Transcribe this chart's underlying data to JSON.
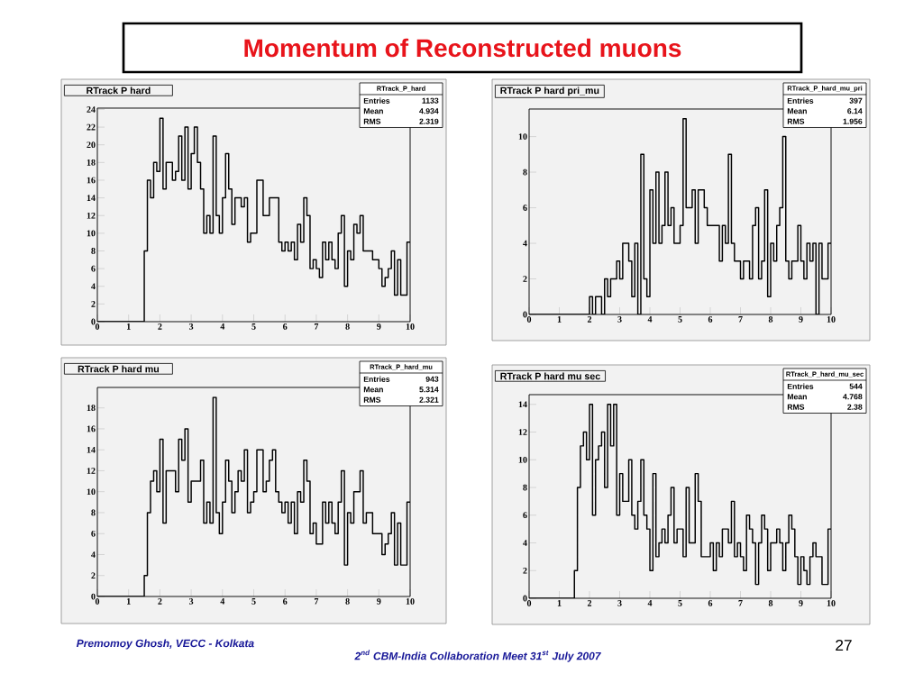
{
  "chart_data": [
    {
      "type": "histogram",
      "title": "RTrack P hard",
      "color": "#000000",
      "bins": [
        0,
        0.1,
        0.2,
        0.3,
        0.4,
        0.5,
        0.6,
        0.7,
        0.8,
        0.9,
        1,
        1.1,
        1.2,
        1.3,
        1.4,
        1.5,
        1.6,
        1.7,
        1.8,
        1.9,
        2,
        2.1,
        2.2,
        2.3,
        2.4,
        2.5,
        2.6,
        2.7,
        2.8,
        2.9,
        3,
        3.1,
        3.2,
        3.3,
        3.4,
        3.5,
        3.6,
        3.7,
        3.8,
        3.9,
        4,
        4.1,
        4.2,
        4.3,
        4.4,
        4.5,
        4.6,
        4.7,
        4.8,
        4.9,
        5,
        5.1,
        5.2,
        5.3,
        5.4,
        5.5,
        5.6,
        5.7,
        5.8,
        5.9,
        6,
        6.1,
        6.2,
        6.3,
        6.4,
        6.5,
        6.6,
        6.7,
        6.8,
        6.9,
        7,
        7.1,
        7.2,
        7.3,
        7.4,
        7.5,
        7.6,
        7.7,
        7.8,
        7.9,
        8,
        8.1,
        8.2,
        8.3,
        8.4,
        8.5,
        8.6,
        8.7,
        8.8,
        8.9,
        9,
        9.1,
        9.2,
        9.3,
        9.4,
        9.5,
        9.6,
        9.7,
        9.8,
        9.9,
        10
      ],
      "values": [
        0,
        0,
        0,
        0,
        0,
        0,
        0,
        0,
        0,
        0,
        0,
        0,
        0,
        0,
        0,
        8,
        16,
        14,
        18,
        17,
        23,
        15,
        18,
        18,
        16,
        17,
        21,
        16,
        22,
        15,
        19,
        22,
        18,
        15,
        10,
        12,
        10,
        21,
        12,
        10,
        14,
        19,
        15,
        11,
        14,
        14,
        13,
        14,
        9,
        10,
        10,
        16,
        16,
        12,
        12,
        14,
        14,
        14,
        9,
        8,
        9,
        8,
        9,
        7,
        11,
        9,
        14,
        12,
        6,
        7,
        6,
        5,
        9,
        7,
        9,
        7,
        6,
        10,
        12,
        4,
        8,
        7,
        11,
        10,
        12,
        8,
        8,
        8,
        7,
        7,
        6,
        4,
        5,
        6,
        8,
        3,
        7,
        3,
        3,
        9
      ],
      "xlim": [
        0,
        10
      ],
      "ylim": [
        0,
        24.15
      ],
      "xticks": [
        0,
        1,
        2,
        3,
        4,
        5,
        6,
        7,
        8,
        9,
        10
      ],
      "yticks": [
        0,
        2,
        4,
        6,
        8,
        10,
        12,
        14,
        16,
        18,
        20,
        22,
        24
      ],
      "annotations": [
        "RTrack_P_hard",
        "Entries",
        "1133",
        "Mean",
        "4.934",
        "RMS",
        "2.319",
        "Momentum of Reconstructed muons"
      ]
    },
    {
      "type": "histogram",
      "title": "RTrack P hard pri_mu",
      "color": "#000000",
      "bins": [
        0,
        0.1,
        0.2,
        0.3,
        0.4,
        0.5,
        0.6,
        0.7,
        0.8,
        0.9,
        1,
        1.1,
        1.2,
        1.3,
        1.4,
        1.5,
        1.6,
        1.7,
        1.8,
        1.9,
        2,
        2.1,
        2.2,
        2.3,
        2.4,
        2.5,
        2.6,
        2.7,
        2.8,
        2.9,
        3,
        3.1,
        3.2,
        3.3,
        3.4,
        3.5,
        3.6,
        3.7,
        3.8,
        3.9,
        4,
        4.1,
        4.2,
        4.3,
        4.4,
        4.5,
        4.6,
        4.7,
        4.8,
        4.9,
        5,
        5.1,
        5.2,
        5.3,
        5.4,
        5.5,
        5.6,
        5.7,
        5.8,
        5.9,
        6,
        6.1,
        6.2,
        6.3,
        6.4,
        6.5,
        6.6,
        6.7,
        6.8,
        6.9,
        7,
        7.1,
        7.2,
        7.3,
        7.4,
        7.5,
        7.6,
        7.7,
        7.8,
        7.9,
        8,
        8.1,
        8.2,
        8.3,
        8.4,
        8.5,
        8.6,
        8.7,
        8.8,
        8.9,
        9,
        9.1,
        9.2,
        9.3,
        9.4,
        9.5,
        9.6,
        9.7,
        9.8,
        9.9,
        10
      ],
      "values": [
        0,
        0,
        0,
        0,
        0,
        0,
        0,
        0,
        0,
        0,
        0,
        0,
        0,
        0,
        0,
        0,
        0,
        0,
        0,
        0,
        1,
        0,
        1,
        1,
        0,
        2,
        1,
        2,
        2,
        3,
        2,
        4,
        4,
        3,
        1,
        4,
        0,
        9,
        2,
        1,
        7,
        4,
        8,
        4,
        5,
        8,
        5,
        6,
        4,
        4,
        5,
        11,
        6,
        6,
        7,
        4,
        7,
        7,
        6,
        5,
        5,
        5,
        5,
        3,
        5,
        4,
        9,
        4,
        3,
        3,
        2,
        3,
        3,
        2,
        5,
        6,
        2,
        3,
        7,
        1,
        4,
        3,
        5,
        6,
        10,
        3,
        2,
        3,
        3,
        5,
        3,
        2,
        4,
        3,
        4,
        0,
        4,
        2,
        2,
        4
      ],
      "xlim": [
        0,
        10
      ],
      "ylim": [
        0,
        11.55
      ],
      "xticks": [
        0,
        1,
        2,
        3,
        4,
        5,
        6,
        7,
        8,
        9,
        10
      ],
      "yticks": [
        0,
        2,
        4,
        6,
        8,
        10
      ],
      "annotations": [
        "RTrack_P_hard_mu_pri",
        "Entries",
        "397",
        "Mean",
        "6.14",
        "RMS",
        "1.956"
      ]
    },
    {
      "type": "histogram",
      "title": "RTrack P hard mu",
      "color": "#000000",
      "bins": [
        0,
        0.1,
        0.2,
        0.3,
        0.4,
        0.5,
        0.6,
        0.7,
        0.8,
        0.9,
        1,
        1.1,
        1.2,
        1.3,
        1.4,
        1.5,
        1.6,
        1.7,
        1.8,
        1.9,
        2,
        2.1,
        2.2,
        2.3,
        2.4,
        2.5,
        2.6,
        2.7,
        2.8,
        2.9,
        3,
        3.1,
        3.2,
        3.3,
        3.4,
        3.5,
        3.6,
        3.7,
        3.8,
        3.9,
        4,
        4.1,
        4.2,
        4.3,
        4.4,
        4.5,
        4.6,
        4.7,
        4.8,
        4.9,
        5,
        5.1,
        5.2,
        5.3,
        5.4,
        5.5,
        5.6,
        5.7,
        5.8,
        5.9,
        6,
        6.1,
        6.2,
        6.3,
        6.4,
        6.5,
        6.6,
        6.7,
        6.8,
        6.9,
        7,
        7.1,
        7.2,
        7.3,
        7.4,
        7.5,
        7.6,
        7.7,
        7.8,
        7.9,
        8,
        8.1,
        8.2,
        8.3,
        8.4,
        8.5,
        8.6,
        8.7,
        8.8,
        8.9,
        9,
        9.1,
        9.2,
        9.3,
        9.4,
        9.5,
        9.6,
        9.7,
        9.8,
        9.9,
        10
      ],
      "values": [
        0,
        0,
        0,
        0,
        0,
        0,
        0,
        0,
        0,
        0,
        0,
        0,
        0,
        0,
        0,
        2,
        8,
        11,
        12,
        10,
        15,
        7,
        12,
        12,
        12,
        10,
        15,
        13,
        16,
        9,
        11,
        11,
        11,
        13,
        7,
        9,
        7,
        19,
        8,
        6,
        9,
        13,
        11,
        8,
        10,
        12,
        11,
        14,
        8,
        9,
        10,
        14,
        14,
        10,
        11,
        13,
        14,
        10,
        9,
        8,
        9,
        7,
        9,
        6,
        10,
        9,
        13,
        11,
        6,
        7,
        5,
        5,
        9,
        7,
        9,
        7,
        6,
        9,
        12,
        3,
        8,
        7,
        10,
        10,
        12,
        7,
        8,
        8,
        6,
        6,
        6,
        4,
        5,
        6,
        8,
        3,
        7,
        3,
        3,
        9
      ],
      "xlim": [
        0,
        10
      ],
      "ylim": [
        0,
        19.95
      ],
      "xticks": [
        0,
        1,
        2,
        3,
        4,
        5,
        6,
        7,
        8,
        9,
        10
      ],
      "yticks": [
        0,
        2,
        4,
        6,
        8,
        10,
        12,
        14,
        16,
        18
      ],
      "annotations": [
        "RTrack_P_hard_mu",
        "Entries",
        "943",
        "Mean",
        "5.314",
        "RMS",
        "2.321"
      ]
    },
    {
      "type": "histogram",
      "title": "RTrack P hard mu sec",
      "color": "#000000",
      "bins": [
        0,
        0.1,
        0.2,
        0.3,
        0.4,
        0.5,
        0.6,
        0.7,
        0.8,
        0.9,
        1,
        1.1,
        1.2,
        1.3,
        1.4,
        1.5,
        1.6,
        1.7,
        1.8,
        1.9,
        2,
        2.1,
        2.2,
        2.3,
        2.4,
        2.5,
        2.6,
        2.7,
        2.8,
        2.9,
        3,
        3.1,
        3.2,
        3.3,
        3.4,
        3.5,
        3.6,
        3.7,
        3.8,
        3.9,
        4,
        4.1,
        4.2,
        4.3,
        4.4,
        4.5,
        4.6,
        4.7,
        4.8,
        4.9,
        5,
        5.1,
        5.2,
        5.3,
        5.4,
        5.5,
        5.6,
        5.7,
        5.8,
        5.9,
        6,
        6.1,
        6.2,
        6.3,
        6.4,
        6.5,
        6.6,
        6.7,
        6.8,
        6.9,
        7,
        7.1,
        7.2,
        7.3,
        7.4,
        7.5,
        7.6,
        7.7,
        7.8,
        7.9,
        8,
        8.1,
        8.2,
        8.3,
        8.4,
        8.5,
        8.6,
        8.7,
        8.8,
        8.9,
        9,
        9.1,
        9.2,
        9.3,
        9.4,
        9.5,
        9.6,
        9.7,
        9.8,
        9.9,
        10
      ],
      "values": [
        0,
        0,
        0,
        0,
        0,
        0,
        0,
        0,
        0,
        0,
        0,
        0,
        0,
        0,
        0,
        2,
        8,
        11,
        12,
        10,
        14,
        6,
        10,
        11,
        12,
        8,
        14,
        11,
        14,
        6,
        9,
        7,
        7,
        10,
        6,
        5,
        7,
        10,
        6,
        5,
        2,
        9,
        3,
        4,
        5,
        4,
        6,
        8,
        4,
        5,
        5,
        3,
        8,
        4,
        4,
        9,
        7,
        3,
        3,
        3,
        4,
        2,
        4,
        3,
        5,
        5,
        4,
        7,
        3,
        4,
        3,
        2,
        6,
        5,
        4,
        1,
        4,
        6,
        5,
        2,
        4,
        4,
        5,
        4,
        2,
        4,
        6,
        5,
        3,
        1,
        3,
        2,
        1,
        3,
        4,
        3,
        3,
        1,
        1,
        5
      ],
      "xlim": [
        0,
        10
      ],
      "ylim": [
        0,
        14.7
      ],
      "xticks": [
        0,
        1,
        2,
        3,
        4,
        5,
        6,
        7,
        8,
        9,
        10
      ],
      "yticks": [
        0,
        2,
        4,
        6,
        8,
        10,
        12,
        14
      ],
      "annotations": [
        "RTrack_P_hard_mu_sec",
        "Entries",
        "544",
        "Mean",
        "4.768",
        "RMS",
        "2.38",
        "Premomoy Ghosh, VECC - Kolkata",
        "2$^{nd}$ CBM-India Collaboration Meet 31$^{st}$ July 2007",
        "27"
      ]
    }
  ]
}
